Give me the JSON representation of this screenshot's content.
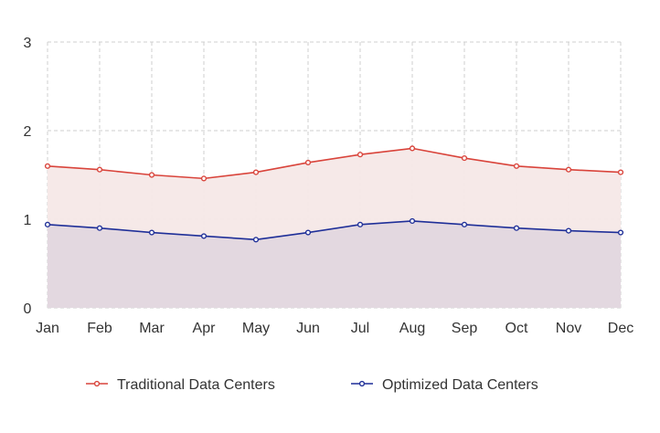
{
  "chart_data": {
    "type": "area",
    "categories": [
      "Jan",
      "Feb",
      "Mar",
      "Apr",
      "May",
      "Jun",
      "Jul",
      "Aug",
      "Sep",
      "Oct",
      "Nov",
      "Dec"
    ],
    "series": [
      {
        "name": "Traditional Data Centers",
        "values": [
          1.6,
          1.56,
          1.5,
          1.46,
          1.53,
          1.64,
          1.73,
          1.8,
          1.69,
          1.6,
          1.56,
          1.53
        ],
        "color": "#d9443b",
        "fill": "#f6e8e7"
      },
      {
        "name": "Optimized Data Centers",
        "values": [
          0.94,
          0.9,
          0.85,
          0.81,
          0.77,
          0.85,
          0.94,
          0.98,
          0.94,
          0.9,
          0.87,
          0.85
        ],
        "color": "#1f2f98",
        "fill": "#e1d7df"
      }
    ],
    "y_ticks": [
      "0",
      "1",
      "2",
      "3"
    ],
    "ylim": [
      0,
      3
    ],
    "title": "",
    "xlabel": "",
    "ylabel": "",
    "grid": true,
    "grid_style": "dashed",
    "legend_position": "bottom"
  }
}
